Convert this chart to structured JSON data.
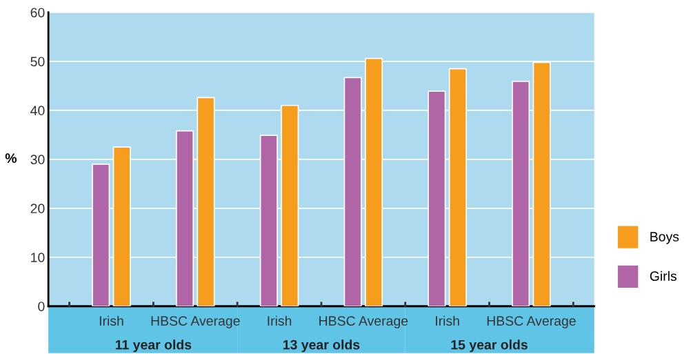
{
  "chart_data": {
    "type": "bar",
    "ylabel": "%",
    "categories": [
      "Irish",
      "HBSC Average",
      "Irish",
      "HBSC Average",
      "Irish",
      "HBSC Average"
    ],
    "series": [
      {
        "name": "Girls",
        "color": "#b066a6",
        "values": [
          29,
          35.8,
          34.9,
          46.7,
          43.9,
          45.9
        ]
      },
      {
        "name": "Boys",
        "color": "#f79d1e",
        "values": [
          32.5,
          42.6,
          41,
          50.6,
          48.5,
          49.8
        ]
      }
    ],
    "annotations": [
      "11 year olds",
      "13 year olds",
      "15 year olds"
    ],
    "ylim": [
      0,
      60
    ],
    "yticks": [
      0,
      10,
      20,
      30,
      40,
      50,
      60
    ],
    "grid": "y",
    "legend": "right"
  }
}
